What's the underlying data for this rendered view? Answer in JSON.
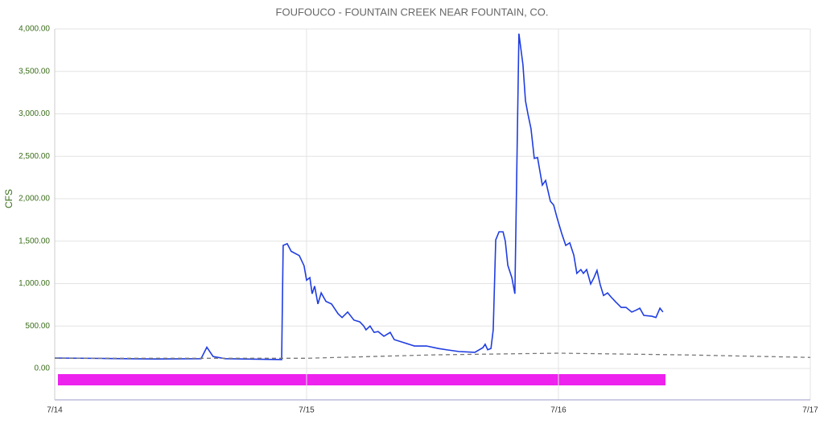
{
  "chart_data": {
    "type": "line",
    "title": "FOUFOUCO - FOUNTAIN CREEK NEAR FOUNTAIN, CO.",
    "y_label": "CFS",
    "xlim": [
      0,
      3
    ],
    "xticks": [
      {
        "value": 0,
        "label": "7/14"
      },
      {
        "value": 1,
        "label": "7/15"
      },
      {
        "value": 2,
        "label": "7/16"
      },
      {
        "value": 3,
        "label": "7/17"
      }
    ],
    "ylim": [
      -370,
      4000
    ],
    "yticks": [
      {
        "value": 0,
        "label": "0.00"
      },
      {
        "value": 500,
        "label": "500.00"
      },
      {
        "value": 1000,
        "label": "1,000.00"
      },
      {
        "value": 1500,
        "label": "1,500.00"
      },
      {
        "value": 2000,
        "label": "2,000.00"
      },
      {
        "value": 2500,
        "label": "2,500.00"
      },
      {
        "value": 3000,
        "label": "3,000.00"
      },
      {
        "value": 3500,
        "label": "3,500.00"
      },
      {
        "value": 4000,
        "label": "4,000.00"
      }
    ],
    "grid": true,
    "series": [
      {
        "color": "#1f3de0",
        "dashed": false,
        "x": [
          0,
          0.2,
          0.4,
          0.581,
          0.604,
          0.629,
          0.677,
          0.901,
          0.907,
          0.923,
          0.939,
          0.971,
          0.99,
          1.0,
          1.013,
          1.022,
          1.032,
          1.045,
          1.058,
          1.077,
          1.099,
          1.125,
          1.141,
          1.163,
          1.188,
          1.211,
          1.227,
          1.236,
          1.252,
          1.268,
          1.284,
          1.307,
          1.332,
          1.348,
          1.38,
          1.428,
          1.476,
          1.524,
          1.556,
          1.604,
          1.668,
          1.7,
          1.709,
          1.719,
          1.732,
          1.741,
          1.751,
          1.764,
          1.78,
          1.789,
          1.799,
          1.815,
          1.827,
          1.843,
          1.859,
          1.869,
          1.879,
          1.891,
          1.904,
          1.917,
          1.936,
          1.949,
          1.968,
          1.981,
          1.994,
          2.013,
          2.029,
          2.045,
          2.061,
          2.073,
          2.089,
          2.099,
          2.112,
          2.128,
          2.141,
          2.153,
          2.166,
          2.179,
          2.195,
          2.211,
          2.227,
          2.249,
          2.268,
          2.291,
          2.307,
          2.323,
          2.339,
          2.371,
          2.387,
          2.403,
          2.415
        ],
        "values": [
          123,
          118,
          112,
          115,
          250,
          140,
          115,
          105,
          1450,
          1470,
          1380,
          1330,
          1210,
          1040,
          1070,
          880,
          970,
          760,
          890,
          790,
          760,
          645,
          600,
          665,
          570,
          550,
          500,
          455,
          500,
          425,
          435,
          380,
          425,
          340,
          310,
          265,
          265,
          235,
          220,
          200,
          190,
          245,
          285,
          220,
          235,
          455,
          1515,
          1610,
          1610,
          1500,
          1215,
          1070,
          880,
          3945,
          3580,
          3155,
          2995,
          2825,
          2475,
          2485,
          2160,
          2215,
          1970,
          1925,
          1780,
          1590,
          1450,
          1480,
          1335,
          1120,
          1165,
          1120,
          1165,
          995,
          1070,
          1155,
          985,
          860,
          890,
          835,
          785,
          720,
          720,
          665,
          685,
          710,
          625,
          615,
          600,
          710,
          665
        ]
      },
      {
        "color": "#777777",
        "dashed": true,
        "x": [
          0,
          1,
          1.5,
          2,
          2.5,
          3
        ],
        "values": [
          120,
          120,
          160,
          180,
          160,
          130
        ]
      }
    ]
  }
}
